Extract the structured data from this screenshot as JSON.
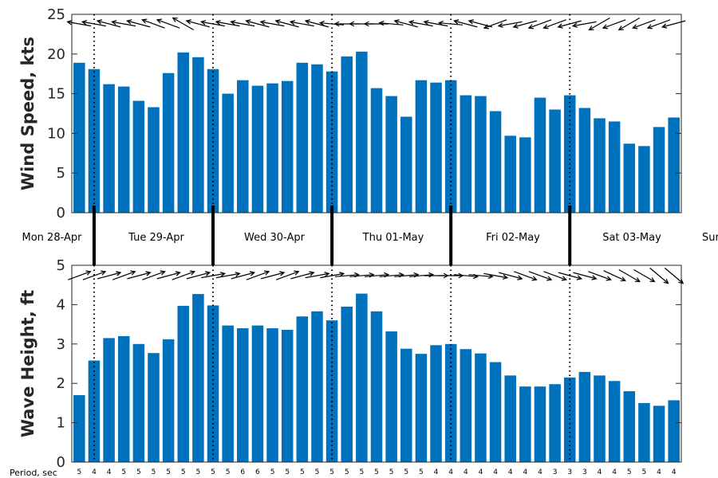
{
  "colors": {
    "bar": "#0072BD",
    "axis": "#262626",
    "arrow": "#000000"
  },
  "day_labels": [
    "Mon 28-Apr",
    "Tue 29-Apr",
    "Wed 30-Apr",
    "Thu 01-May",
    "Fri 02-May",
    "Sat 03-May",
    "Sun"
  ],
  "period_label": "Period, sec",
  "chart_data": [
    {
      "type": "bar",
      "ylabel": "Wind Speed, kts",
      "ylim": [
        0,
        25
      ],
      "yticks": [
        0,
        5,
        10,
        15,
        20,
        25
      ],
      "values": [
        18.9,
        18.1,
        16.2,
        15.9,
        14.1,
        13.3,
        17.6,
        20.2,
        19.6,
        18.1,
        15.0,
        16.7,
        16.0,
        16.3,
        16.6,
        18.9,
        18.7,
        17.8,
        19.7,
        20.3,
        15.7,
        14.7,
        12.1,
        16.7,
        16.4,
        16.7,
        14.8,
        14.7,
        12.8,
        9.7,
        9.5,
        14.5,
        13.0,
        14.8,
        13.2,
        11.9,
        11.5,
        8.7,
        8.4,
        10.8,
        12.0
      ],
      "direction_arrows_deg": [
        170,
        170,
        165,
        170,
        165,
        160,
        160,
        150,
        165,
        170,
        170,
        170,
        165,
        170,
        165,
        170,
        165,
        175,
        180,
        180,
        180,
        175,
        165,
        170,
        170,
        175,
        165,
        165,
        200,
        190,
        195,
        200,
        200,
        195,
        190,
        210,
        200,
        210,
        200,
        200,
        195
      ],
      "grid": false
    },
    {
      "type": "bar",
      "ylabel": "Wave Height, ft",
      "ylim": [
        0,
        5
      ],
      "yticks": [
        0,
        1,
        2,
        3,
        4,
        5
      ],
      "values": [
        1.7,
        2.58,
        3.15,
        3.2,
        3.0,
        2.77,
        3.12,
        3.97,
        4.27,
        3.98,
        3.47,
        3.4,
        3.47,
        3.4,
        3.36,
        3.7,
        3.83,
        3.6,
        3.95,
        4.28,
        3.83,
        3.32,
        2.88,
        2.75,
        2.97,
        3.0,
        2.87,
        2.76,
        2.54,
        2.2,
        1.92,
        1.92,
        1.98,
        2.15,
        2.29,
        2.2,
        2.06,
        1.8,
        1.5,
        1.43,
        1.57
      ],
      "direction_arrows_deg": [
        20,
        20,
        15,
        20,
        15,
        20,
        15,
        20,
        15,
        10,
        10,
        15,
        20,
        15,
        20,
        15,
        10,
        10,
        5,
        5,
        5,
        5,
        5,
        5,
        0,
        0,
        -5,
        -5,
        -10,
        -15,
        -20,
        -20,
        -20,
        -15,
        -15,
        -20,
        -25,
        -30,
        -30,
        -40,
        -40
      ],
      "periods": [
        "5",
        "4",
        "4",
        "5",
        "5",
        "5",
        "5",
        "5",
        "5",
        "5",
        "5",
        "6",
        "6",
        "5",
        "5",
        "5",
        "5",
        "5",
        "5",
        "5",
        "5",
        "5",
        "5",
        "5",
        "4",
        "4",
        "4",
        "4",
        "4",
        "4",
        "4",
        "4",
        "3",
        "3",
        "3",
        "4",
        "4",
        "5",
        "5",
        "4",
        "4"
      ],
      "grid": false
    }
  ]
}
